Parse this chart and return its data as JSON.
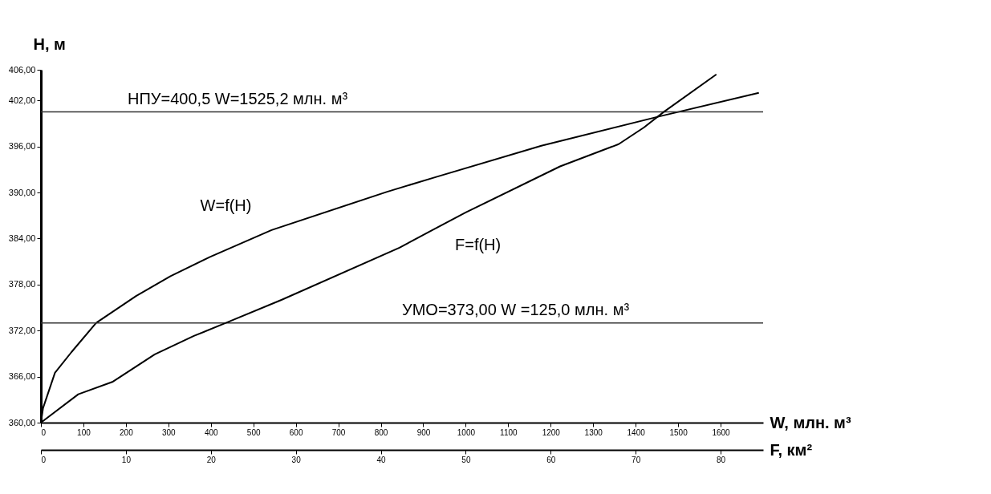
{
  "chart_data": {
    "type": "line",
    "xlabel": "W, млн. м³",
    "x2label": "F, км²",
    "ylabel": "H, м",
    "xlim": [
      0,
      1700
    ],
    "xticks": [
      0,
      100,
      200,
      300,
      400,
      500,
      600,
      700,
      800,
      900,
      1000,
      1100,
      1200,
      1300,
      1400,
      1500,
      1600
    ],
    "x2lim": [
      0,
      85
    ],
    "x2ticks": [
      0,
      10,
      20,
      30,
      40,
      50,
      60,
      70,
      80
    ],
    "ylim": [
      360,
      406
    ],
    "yticks": [
      {
        "value": 360,
        "label": "360,00"
      },
      {
        "value": 366,
        "label": "366,00"
      },
      {
        "value": 372,
        "label": "372,00"
      },
      {
        "value": 378,
        "label": "378,00"
      },
      {
        "value": 384,
        "label": "384,00"
      },
      {
        "value": 390,
        "label": "390,00"
      },
      {
        "value": 396,
        "label": "396,00"
      },
      {
        "value": 402,
        "label": "402,00"
      },
      {
        "value": 406,
        "label": "406,00"
      }
    ],
    "grid": false,
    "marker": "none",
    "line_style": "solid",
    "series": [
      {
        "name": "W=f(H)",
        "color": "#000000",
        "x": [
          0,
          5,
          33,
          72,
          130,
          224,
          305,
          398,
          543,
          815,
          929,
          1178,
          1454,
          1690
        ],
        "values": [
          360,
          361.9,
          366.5,
          369.2,
          373,
          376.5,
          379.1,
          381.6,
          385.1,
          390.1,
          392.0,
          396.1,
          399.9,
          403.0
        ]
      },
      {
        "name": "F=f(H)",
        "color": "#000000",
        "axis": "x2",
        "x": [
          0,
          4.4,
          8.4,
          13.4,
          18.0,
          22.0,
          28.3,
          42.2,
          45.9,
          50,
          61.1,
          68.0,
          71.0,
          73.3,
          79.5
        ],
        "values": [
          360,
          363.7,
          365.3,
          368.9,
          371.3,
          373.1,
          376.0,
          382.8,
          385.0,
          387.4,
          393.4,
          396.3,
          398.5,
          400.5,
          405.4
        ]
      }
    ],
    "ref_lines": [
      {
        "axis": "y",
        "value": 400.5,
        "label": "НПУ=400,5  W=1525,2 млн. м³",
        "color": "#333333"
      },
      {
        "axis": "y",
        "value": 373,
        "label": "УМО=373,00    W =125,0 млн. м³",
        "color": "#333333"
      }
    ]
  }
}
